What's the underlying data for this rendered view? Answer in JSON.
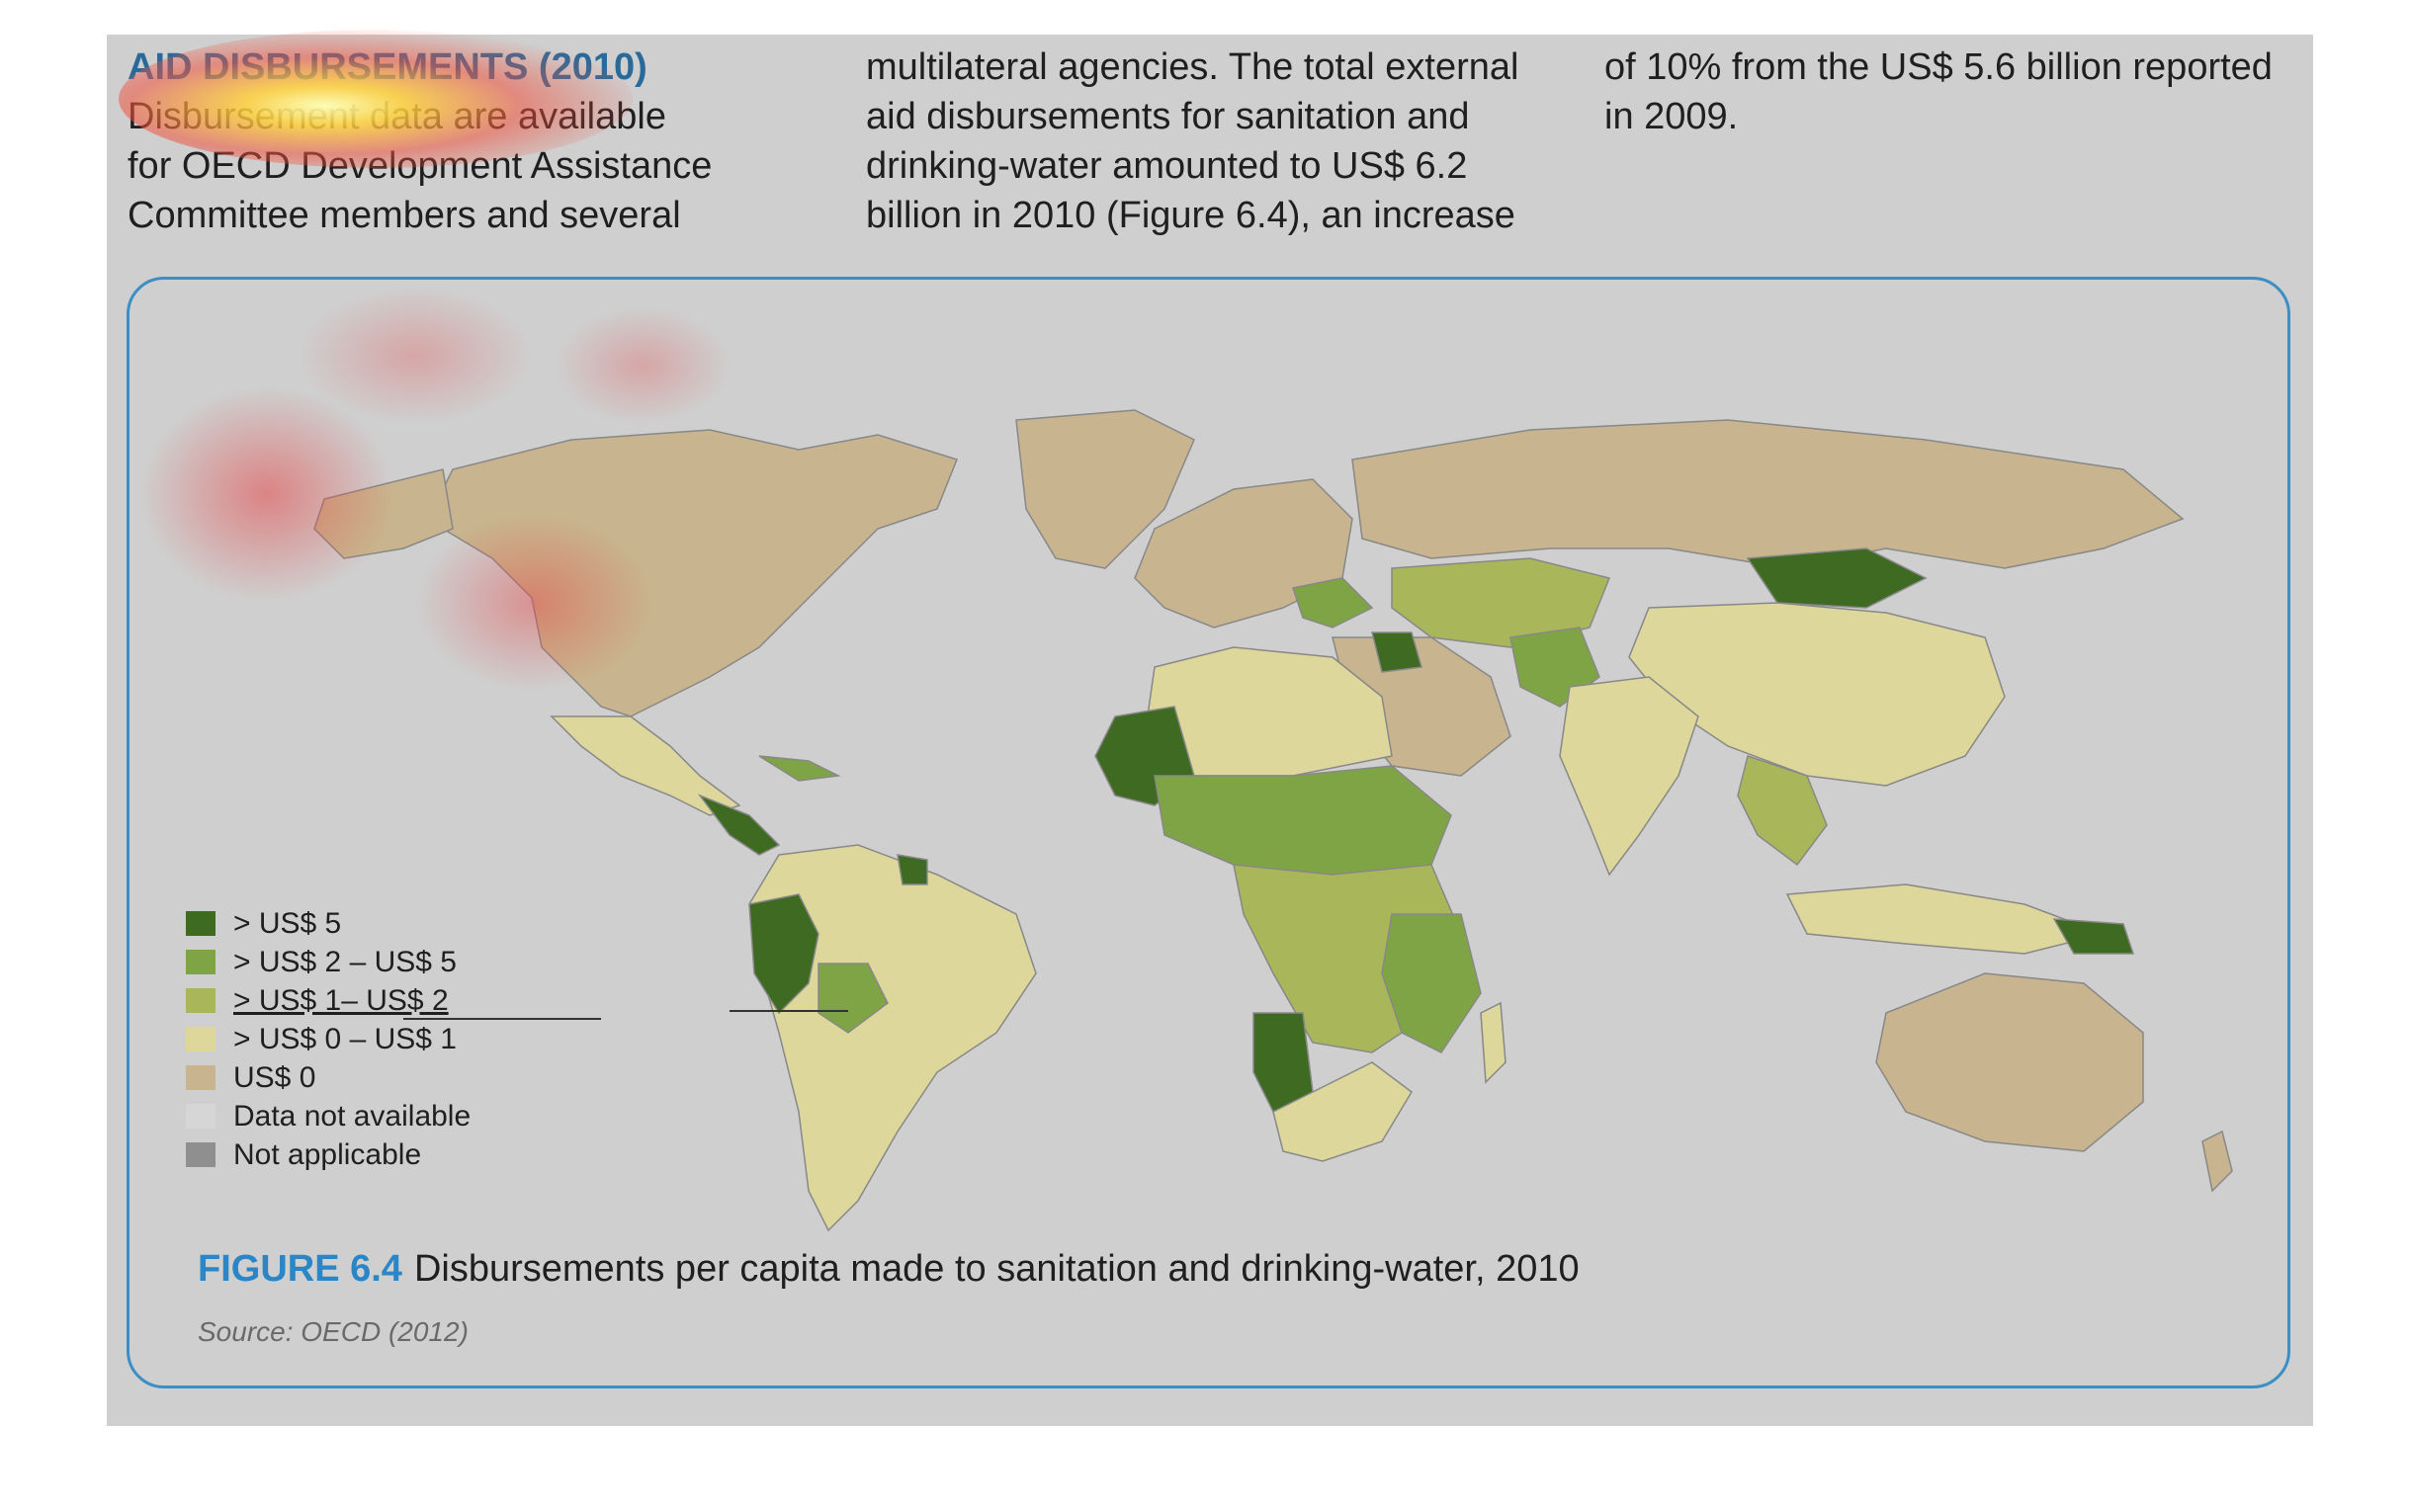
{
  "intro": {
    "heading": "AID DISBURSEMENTS (2010)",
    "col1_lines": [
      "Disbursement data are available",
      "for OECD Development Assistance",
      "Committee members and several"
    ],
    "col2_lines": [
      "multilateral agencies. The total external",
      "aid disbursements for sanitation and",
      "drinking-water amounted to US$ 6.2",
      "billion in 2010 (Figure 6.4), an increase"
    ],
    "col3_lines": [
      "of 10% from the US$ 5.6 billion reported",
      "in 2009."
    ]
  },
  "legend": {
    "items": [
      {
        "label": "> US$ 5",
        "color": "#3f6a22"
      },
      {
        "label": "> US$ 2 – US$ 5",
        "color": "#7ea446"
      },
      {
        "label": "> US$ 1– US$ 2",
        "color": "#aab65a"
      },
      {
        "label": "> US$ 0 – US$ 1",
        "color": "#ddd79c"
      },
      {
        "label": "US$ 0",
        "color": "#c8b48e"
      },
      {
        "label": "Data not available",
        "color": "#d6d6d6"
      },
      {
        "label": "Not applicable",
        "color": "#8f8f8f"
      }
    ]
  },
  "figure": {
    "number": "FIGURE 6.4",
    "title": "Disbursements per capita made to sanitation and drinking-water, 2010",
    "source": "Source: OECD (2012)"
  },
  "colors": {
    "accent": "#2a86c6",
    "frame": "#3b8fc4",
    "ocean": "#cfcfcf"
  }
}
